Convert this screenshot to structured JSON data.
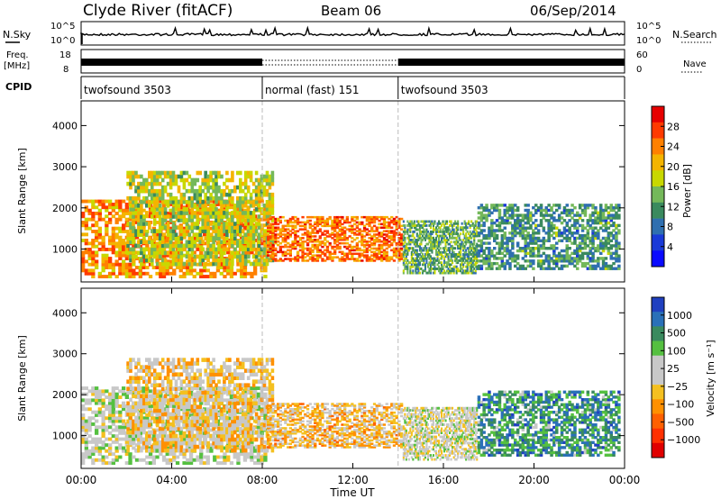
{
  "header": {
    "station": "Clyde River (fitACF)",
    "beam": "Beam 06",
    "date": "06/Sep/2014"
  },
  "top_panels": {
    "nsky_label": "N.Sky",
    "nsearch_label": "N.Search",
    "nsky_ticks": [
      "10^5",
      "10^0"
    ],
    "freq_label_line1": "Freq.",
    "freq_label_line2": "[MHz]",
    "freq_ticks": [
      "18",
      "8"
    ],
    "nave_label": "Nave",
    "nave_ticks": [
      "60",
      "0"
    ],
    "cpid_label": "CPID",
    "cpid_segments": [
      {
        "label": "twofsound 3503",
        "start_hour": 0,
        "end_hour": 8
      },
      {
        "label": "normal (fast) 151",
        "start_hour": 8,
        "end_hour": 14
      },
      {
        "label": "twofsound 3503",
        "start_hour": 14,
        "end_hour": 24
      }
    ]
  },
  "x_axis": {
    "label": "Time UT",
    "ticks": [
      "00:00",
      "04:00",
      "08:00",
      "12:00",
      "16:00",
      "20:00",
      "00:00"
    ]
  },
  "power_panel": {
    "ylabel": "Slant Range [km]",
    "yticks": [
      "4000",
      "3000",
      "2000",
      "1000"
    ],
    "colorbar_label": "Power [dB]",
    "colorbar_ticks": [
      "28",
      "24",
      "20",
      "16",
      "12",
      "8",
      "4"
    ],
    "colors": [
      "#e60000",
      "#ff3a00",
      "#ff8000",
      "#f4b400",
      "#c8d800",
      "#74b85a",
      "#3a8a5e",
      "#2f6fb0",
      "#1a3ad8",
      "#0a0aff"
    ]
  },
  "velocity_panel": {
    "ylabel": "Slant Range [km]",
    "yticks": [
      "4000",
      "3000",
      "2000",
      "1000"
    ],
    "colorbar_label": "Velocity [m s⁻¹]",
    "colorbar_ticks": [
      "1000",
      "500",
      "100",
      "25",
      "−25",
      "−100",
      "−500",
      "−1000"
    ],
    "colors": [
      "#2040c0",
      "#2a70b8",
      "#3a8a5e",
      "#55c040",
      "#c8c8c8",
      "#c8c8c8",
      "#f4c020",
      "#ff9000",
      "#ff6000",
      "#ff3000",
      "#e00000"
    ]
  },
  "chart_data": [
    {
      "type": "heatmap",
      "title": "Clyde River (fitACF) Beam 06 06/Sep/2014",
      "xlabel": "Time UT",
      "ylabel": "Slant Range [km]",
      "xlim_hours": [
        0,
        24
      ],
      "ylim_km": [
        200,
        4600
      ],
      "colorbar": "Power [dB]",
      "clim": [
        0,
        30
      ],
      "regions": [
        {
          "t0": 0.0,
          "t1": 8.2,
          "r0": 300,
          "r1": 2200,
          "v": 22
        },
        {
          "t0": 2.0,
          "t1": 8.5,
          "r0": 600,
          "r1": 2900,
          "v": 16
        },
        {
          "t0": 8.2,
          "t1": 14.2,
          "r0": 700,
          "r1": 1800,
          "v": 24
        },
        {
          "t0": 14.2,
          "t1": 17.5,
          "r0": 400,
          "r1": 1700,
          "v": 12
        },
        {
          "t0": 17.5,
          "t1": 23.8,
          "r0": 500,
          "r1": 2100,
          "v": 10
        }
      ]
    },
    {
      "type": "heatmap",
      "title": "Clyde River (fitACF) Beam 06 06/Sep/2014",
      "xlabel": "Time UT",
      "ylabel": "Slant Range [km]",
      "xlim_hours": [
        0,
        24
      ],
      "ylim_km": [
        200,
        4600
      ],
      "colorbar": "Velocity [m s⁻¹]",
      "clim": [
        -1000,
        1000
      ],
      "regions": [
        {
          "t0": 0.0,
          "t1": 8.2,
          "r0": 300,
          "r1": 2200,
          "v": 150
        },
        {
          "t0": 2.0,
          "t1": 8.5,
          "r0": 600,
          "r1": 2900,
          "v": -150
        },
        {
          "t0": 8.2,
          "t1": 14.2,
          "r0": 700,
          "r1": 1800,
          "v": -200
        },
        {
          "t0": 14.2,
          "t1": 17.5,
          "r0": 400,
          "r1": 1700,
          "v": 80
        },
        {
          "t0": 17.5,
          "t1": 23.8,
          "r0": 500,
          "r1": 2100,
          "v": 600
        }
      ]
    }
  ]
}
